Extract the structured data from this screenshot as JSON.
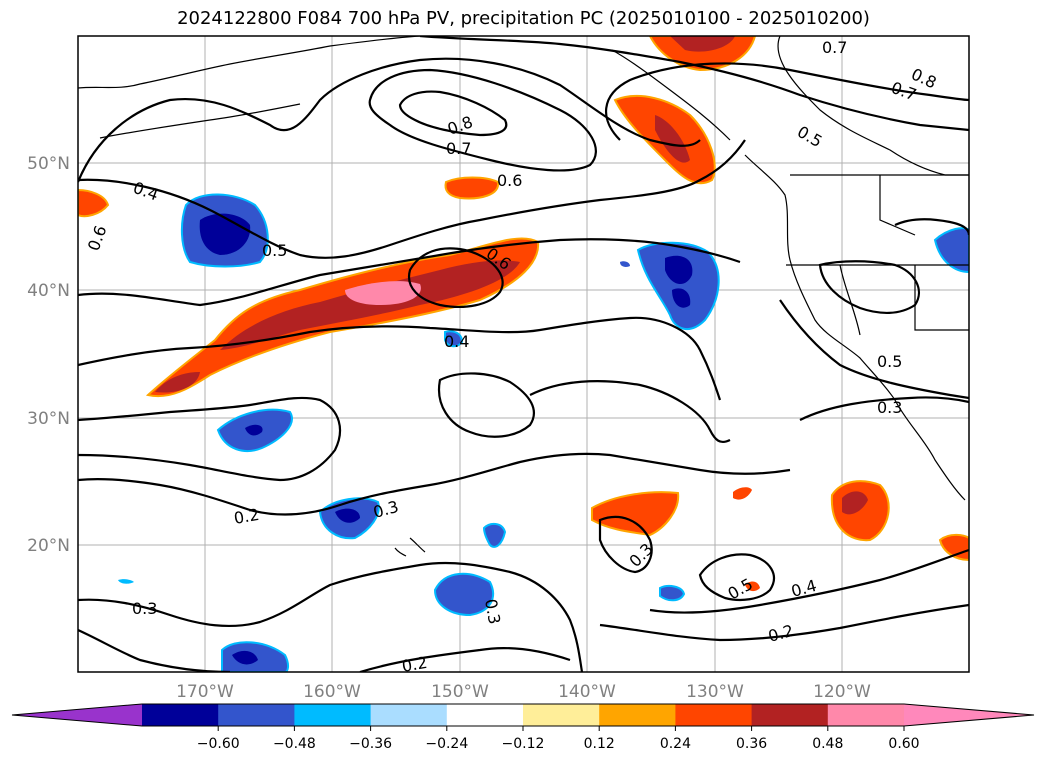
{
  "title": "2024122800 F084 700 hPa PV, precipitation PC (2025010100 - 2025010200)",
  "lat_labels": [
    "50°N",
    "40°N",
    "30°N",
    "20°N"
  ],
  "lon_labels": [
    "170°W",
    "160°W",
    "150°W",
    "140°W",
    "130°W",
    "120°W"
  ],
  "contour_labels": [
    "0.7",
    "0.8",
    "0.7",
    "0.8",
    "0.7",
    "0.5",
    "0.6",
    "0.4",
    "0.6",
    "0.5",
    "0.6",
    "0.4",
    "0.5",
    "0.3",
    "0.2",
    "0.3",
    "0.3",
    "0.3",
    "0.5",
    "0.4",
    "0.2",
    "0.3",
    "0.2"
  ],
  "colorbar": {
    "colors": [
      "#9933cc",
      "#000099",
      "#3355cc",
      "#00bbff",
      "#aaddff",
      "#ffffff",
      "#ffee99",
      "#ffa500",
      "#ff4500",
      "#b22222",
      "#ff88aa",
      "#ff88bb"
    ],
    "tick_labels": [
      "−0.60",
      "−0.48",
      "−0.36",
      "−0.24",
      "−0.12",
      "0.12",
      "0.24",
      "0.36",
      "0.48",
      "0.60"
    ]
  }
}
